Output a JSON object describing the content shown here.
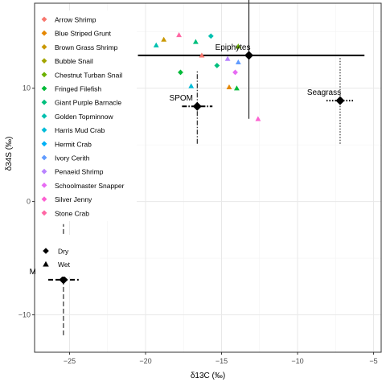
{
  "chart_data": {
    "type": "scatter",
    "title": "",
    "xlabel": "δ13C (‰)",
    "ylabel": "δ34S (‰)",
    "xlim": [
      -27.3,
      -4.5
    ],
    "ylim": [
      -13.3,
      17.5
    ],
    "x_ticks": [
      -25,
      -20,
      -15,
      -10,
      -5
    ],
    "y_ticks": [
      -10,
      0,
      10
    ],
    "grid": true,
    "legend": "top-left",
    "species_legend": [
      {
        "name": "Arrow Shrimp",
        "color": "#F8766D"
      },
      {
        "name": "Blue Striped Grunt",
        "color": "#E58700"
      },
      {
        "name": "Brown Grass Shrimp",
        "color": "#C99800"
      },
      {
        "name": "Bubble Snail",
        "color": "#A3A500"
      },
      {
        "name": "Chestnut Turban Snail",
        "color": "#6BB100"
      },
      {
        "name": "Fringed Filefish",
        "color": "#00BA38"
      },
      {
        "name": "Giant Purple Barnacle",
        "color": "#00BF7D"
      },
      {
        "name": "Golden Topminnow",
        "color": "#00C0AF"
      },
      {
        "name": "Harris Mud Crab",
        "color": "#00BCD8"
      },
      {
        "name": "Hermit Crab",
        "color": "#00B0F6"
      },
      {
        "name": "Ivory Cerith",
        "color": "#619CFF"
      },
      {
        "name": "Penaeid Shrimp",
        "color": "#B983FF"
      },
      {
        "name": "Schoolmaster Snapper",
        "color": "#E76BF3"
      },
      {
        "name": "Silver Jenny",
        "color": "#FD61D1"
      },
      {
        "name": "Stone Crab",
        "color": "#FF67A4"
      }
    ],
    "season_legend": [
      {
        "name": "Dry",
        "shape": "diamond"
      },
      {
        "name": "Wet",
        "shape": "triangle"
      }
    ],
    "consumers": [
      {
        "x": -19.3,
        "y": 13.8,
        "shape": "triangle",
        "color": "#00C0AF"
      },
      {
        "x": -18.8,
        "y": 14.3,
        "shape": "triangle",
        "color": "#C99800"
      },
      {
        "x": -17.8,
        "y": 14.7,
        "shape": "triangle",
        "color": "#FF67A4"
      },
      {
        "x": -17.7,
        "y": 11.4,
        "shape": "diamond",
        "color": "#00BA38"
      },
      {
        "x": -16.7,
        "y": 14.1,
        "shape": "triangle",
        "color": "#00BF7D"
      },
      {
        "x": -15.7,
        "y": 14.6,
        "shape": "diamond",
        "color": "#00C0AF"
      },
      {
        "x": -16.3,
        "y": 12.9,
        "shape": "triangle",
        "color": "#F8766D"
      },
      {
        "x": -17.0,
        "y": 10.2,
        "shape": "triangle",
        "color": "#00BCD8"
      },
      {
        "x": -15.3,
        "y": 12.0,
        "shape": "diamond",
        "color": "#00BF7D"
      },
      {
        "x": -14.6,
        "y": 12.6,
        "shape": "triangle",
        "color": "#B983FF"
      },
      {
        "x": -14.5,
        "y": 10.1,
        "shape": "triangle",
        "color": "#E58700"
      },
      {
        "x": -14.1,
        "y": 11.4,
        "shape": "diamond",
        "color": "#E76BF3"
      },
      {
        "x": -14.0,
        "y": 10.0,
        "shape": "triangle",
        "color": "#00BA38"
      },
      {
        "x": -13.9,
        "y": 12.3,
        "shape": "triangle",
        "color": "#619CFF"
      },
      {
        "x": -13.9,
        "y": 13.7,
        "shape": "triangle",
        "color": "#6BB100"
      },
      {
        "x": -12.6,
        "y": 7.3,
        "shape": "triangle",
        "color": "#FD61D1"
      }
    ],
    "sources": [
      {
        "label": "Epiphytes",
        "x": -13.2,
        "y": 12.9,
        "x_err_range": [
          -20.5,
          -5.6
        ],
        "y_err_range": [
          7.3,
          18.5
        ],
        "style": "solid"
      },
      {
        "label": "SPOM",
        "x": -16.6,
        "y": 8.4,
        "x_err_range": [
          -17.6,
          -15.6
        ],
        "y_err_range": [
          5.1,
          11.5
        ],
        "style": "dashdot"
      },
      {
        "label": "Seagrass",
        "x": -7.2,
        "y": 8.9,
        "x_err_range": [
          -8.1,
          -6.3
        ],
        "y_err_range": [
          5.1,
          12.7
        ],
        "style": "dotted"
      },
      {
        "label": "Mangrove",
        "x": -25.4,
        "y": -6.9,
        "x_err_range": [
          -26.4,
          -24.4
        ],
        "y_err_range": [
          -11.8,
          -2.0
        ],
        "style": "dashed"
      }
    ]
  }
}
